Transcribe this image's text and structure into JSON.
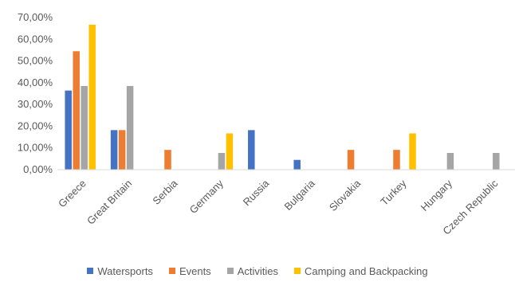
{
  "chart_data": {
    "type": "bar",
    "categories": [
      "Greece",
      "Great Britain",
      "Serbia",
      "Germany",
      "Russia",
      "Bulgaria",
      "Slovakia",
      "Turkey",
      "Hungary",
      "Czech Republic"
    ],
    "series": [
      {
        "name": "Watersports",
        "color": "#4472C4",
        "values": [
          36.4,
          18.2,
          0,
          0,
          18.2,
          4.5,
          0,
          0,
          0,
          0
        ]
      },
      {
        "name": "Events",
        "color": "#ED7D31",
        "values": [
          54.5,
          18.2,
          9.1,
          0,
          0,
          0,
          9.1,
          9.1,
          0,
          0
        ]
      },
      {
        "name": "Activities",
        "color": "#A5A5A5",
        "values": [
          38.5,
          38.5,
          0,
          7.7,
          0,
          0,
          0,
          0,
          7.7,
          7.7
        ]
      },
      {
        "name": "Camping and Backpacking",
        "color": "#FFC000",
        "values": [
          66.7,
          0,
          0,
          16.7,
          0,
          0,
          0,
          16.7,
          0,
          0
        ]
      }
    ],
    "y_ticks": [
      "0,00%",
      "10,00%",
      "20,00%",
      "30,00%",
      "40,00%",
      "50,00%",
      "60,00%",
      "70,00%"
    ],
    "ylim": [
      0,
      70
    ],
    "grid": false,
    "legend_position": "bottom"
  }
}
